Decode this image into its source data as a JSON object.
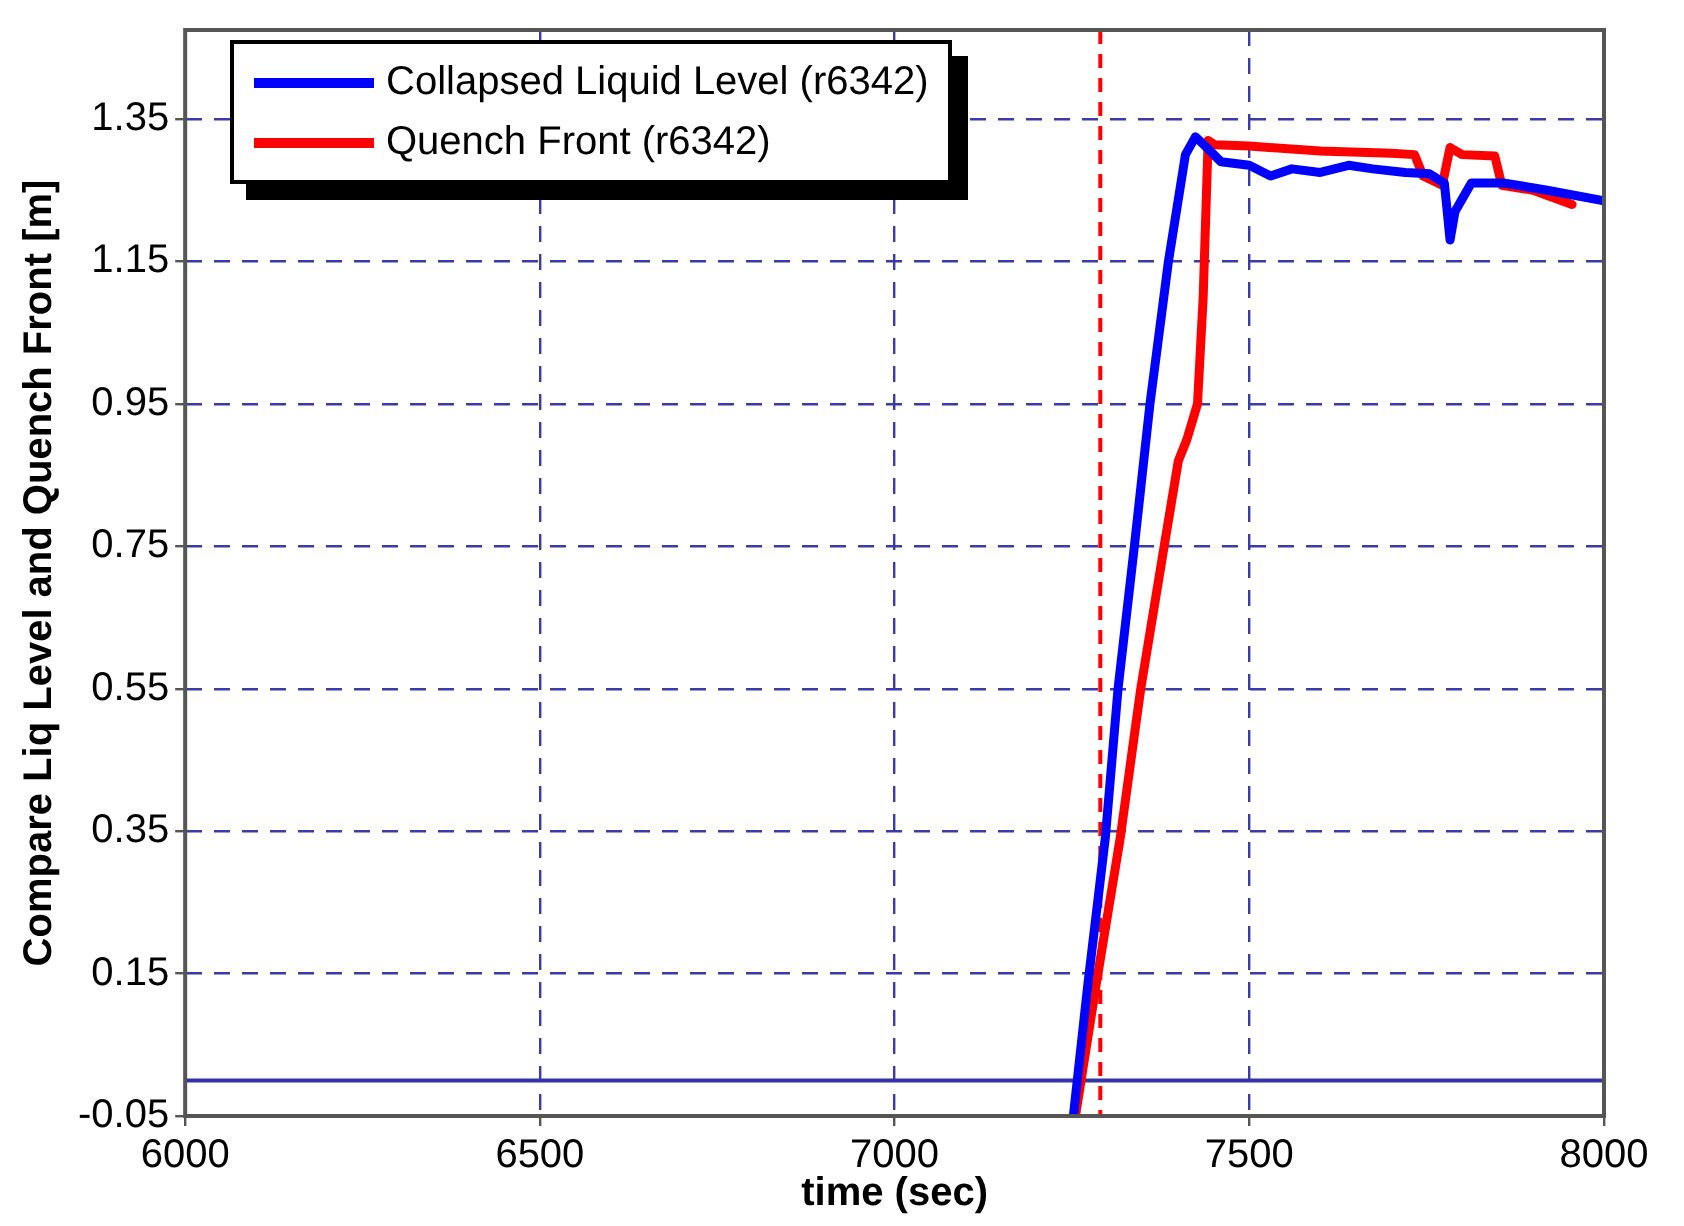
{
  "chart_data": {
    "type": "line",
    "xlabel": "time (sec)",
    "ylabel": "Compare Liq Level and Quench Front [m]",
    "xlim": [
      6000,
      8000
    ],
    "xticks": [
      6000,
      6500,
      7000,
      7500,
      8000
    ],
    "ylim": [
      -0.05,
      1.475
    ],
    "yticks": [
      -0.05,
      0.15,
      0.35,
      0.55,
      0.75,
      0.95,
      1.15,
      1.35
    ],
    "grid": true,
    "legend": "top left",
    "marker": "none",
    "line_style": "solid",
    "ref_lines": [
      {
        "axis": "x",
        "value": 7290,
        "color": "#ff0000",
        "line_style": "dashed"
      },
      {
        "axis": "y",
        "value": 0,
        "color": "#3333aa",
        "line_style": "solid"
      }
    ],
    "series": [
      {
        "name": "Collapsed Liquid Level (r6342)",
        "color": "#0000ff",
        "x": [
          7252,
          7273,
          7297,
          7315,
          7338,
          7360,
          7386,
          7410,
          7424,
          7440,
          7460,
          7500,
          7530,
          7560,
          7600,
          7640,
          7674,
          7720,
          7754,
          7775,
          7783,
          7790,
          7813,
          7860,
          7920,
          8000
        ],
        "values": [
          -0.05,
          0.14,
          0.34,
          0.55,
          0.75,
          0.95,
          1.15,
          1.3,
          1.325,
          1.31,
          1.29,
          1.285,
          1.27,
          1.28,
          1.275,
          1.285,
          1.28,
          1.275,
          1.273,
          1.26,
          1.18,
          1.22,
          1.26,
          1.26,
          1.25,
          1.235
        ]
      },
      {
        "name": "Quench Front (r6342)",
        "color": "#ff0000",
        "x": [
          7255,
          7285,
          7318,
          7347,
          7380,
          7400,
          7412,
          7427,
          7435,
          7442,
          7451,
          7500,
          7600,
          7700,
          7733,
          7745,
          7772,
          7783,
          7800,
          7846,
          7856,
          7900,
          7955
        ],
        "values": [
          -0.05,
          0.14,
          0.34,
          0.55,
          0.75,
          0.87,
          0.9,
          0.95,
          1.1,
          1.32,
          1.314,
          1.312,
          1.305,
          1.302,
          1.3,
          1.27,
          1.257,
          1.31,
          1.3,
          1.298,
          1.257,
          1.25,
          1.23
        ]
      }
    ]
  }
}
